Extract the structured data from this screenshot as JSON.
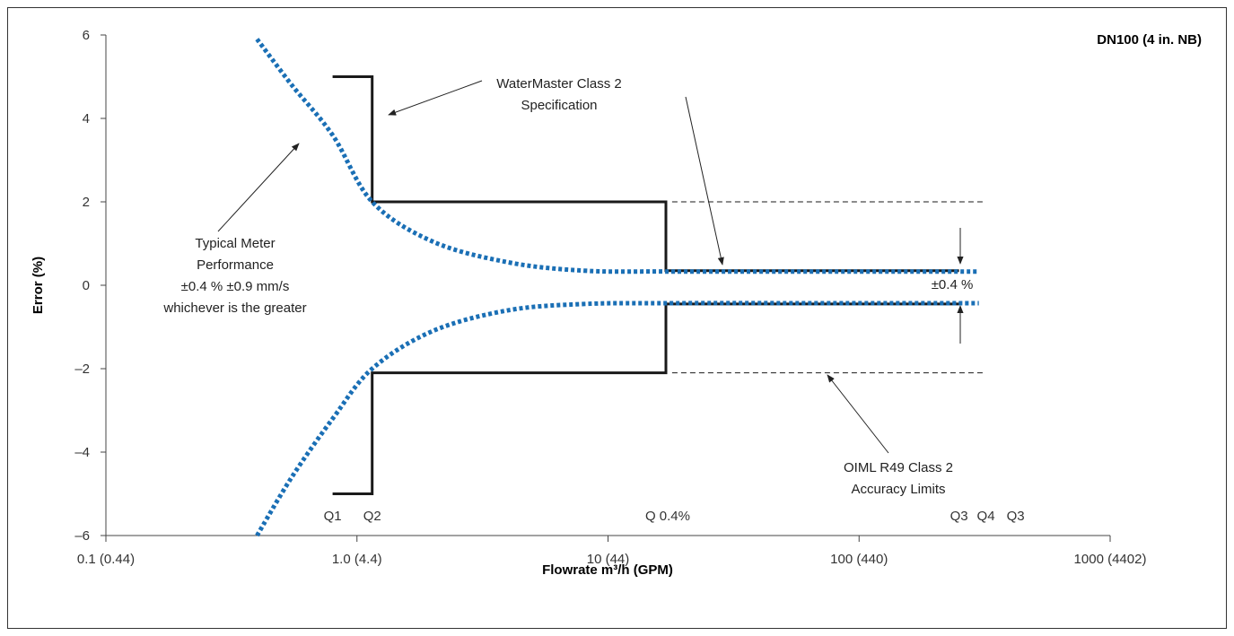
{
  "chart_data": {
    "type": "line",
    "title": "DN100 (4 in. NB)",
    "xlabel": "Flowrate m³/h (GPM)",
    "ylabel": "Error (%)",
    "x_scale": "log",
    "xlim": [
      0.1,
      1000
    ],
    "ylim": [
      -6,
      6
    ],
    "x_ticks": [
      {
        "value": 0.1,
        "label": "0.1 (0.44)"
      },
      {
        "value": 1,
        "label": "1.0 (4.4)"
      },
      {
        "value": 10,
        "label": "10 (44)"
      },
      {
        "value": 100,
        "label": "100 (440)"
      },
      {
        "value": 1000,
        "label": "1000 (4402)"
      }
    ],
    "y_ticks": [
      {
        "value": 6,
        "label": "6"
      },
      {
        "value": 4,
        "label": "4"
      },
      {
        "value": 2,
        "label": "2"
      },
      {
        "value": 0,
        "label": "0"
      },
      {
        "value": -2,
        "label": "–2"
      },
      {
        "value": -4,
        "label": "–4"
      },
      {
        "value": -6,
        "label": "–6"
      }
    ],
    "grid": false,
    "flow_points": [
      {
        "label": "Q1",
        "value": 0.8
      },
      {
        "label": "Q2",
        "value": 1.15
      },
      {
        "label": "Q 0.4%",
        "value": 17
      },
      {
        "label": "Q3",
        "value": 250
      },
      {
        "label": "Q4",
        "value": 320
      },
      {
        "label": "Q3",
        "value": 420
      }
    ],
    "series": [
      {
        "style": "solid",
        "color": "#1a1a1a",
        "upper": {
          "x": [
            0.8,
            1.15,
            1.15,
            17,
            17,
            250
          ],
          "y": [
            5,
            5,
            2,
            2,
            0.35,
            0.35
          ]
        },
        "lower": {
          "x": [
            0.8,
            1.15,
            1.15,
            17,
            17,
            250
          ],
          "y": [
            -5,
            -5,
            -2.1,
            -2.1,
            -0.45,
            -0.45
          ]
        }
      },
      {
        "style": "dotted",
        "color": "#1a6fb5",
        "upper": {
          "x": [
            0.4,
            0.55,
            0.8,
            1.15,
            2,
            4,
            8,
            17,
            100,
            300
          ],
          "y": [
            5.9,
            4.8,
            3.6,
            2.0,
            1.05,
            0.55,
            0.35,
            0.33,
            0.33,
            0.33
          ]
        },
        "lower": {
          "x": [
            0.4,
            0.55,
            0.8,
            1.15,
            2,
            4,
            8,
            17,
            100,
            300
          ],
          "y": [
            -6.0,
            -4.6,
            -3.2,
            -2.0,
            -1.1,
            -0.6,
            -0.45,
            -0.43,
            -0.43,
            -0.43
          ]
        }
      },
      {
        "style": "dashed",
        "color": "#1a1a1a",
        "upper": {
          "x": [
            18,
            320
          ],
          "y": [
            2,
            2
          ]
        },
        "lower": {
          "x": [
            18,
            320
          ],
          "y": [
            -2.1,
            -2.1
          ]
        }
      }
    ],
    "annotations": {
      "watermaster": {
        "lines": [
          "WaterMaster Class 2",
          "Specification"
        ]
      },
      "typical": {
        "lines": [
          "Typical Meter",
          "Performance",
          "±0.4 % ±0.9 mm/s",
          "whichever is the greater"
        ]
      },
      "oiml": {
        "lines": [
          "OIML R49 Class 2",
          "Accuracy Limits"
        ]
      },
      "band": {
        "text": "±0.4 %"
      }
    }
  }
}
